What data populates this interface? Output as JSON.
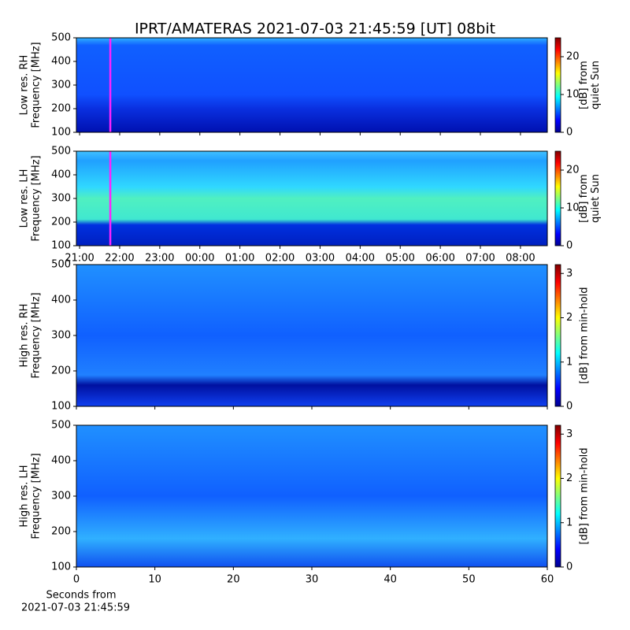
{
  "title": "IPRT/AMATERAS 2021-07-03 21:45:59 [UT]   08bit",
  "chart_data": [
    {
      "type": "spectrogram",
      "colormap": "jet",
      "ylabel": [
        "Low res. RH",
        "Frequency [MHz]"
      ],
      "xlim": [
        20.92,
        32.67
      ],
      "show_xtick_labels": false,
      "xticks": [
        {
          "value": 21,
          "label": "21:00"
        },
        {
          "value": 22,
          "label": "22:00"
        },
        {
          "value": 23,
          "label": "23:00"
        },
        {
          "value": 24,
          "label": "00:00"
        },
        {
          "value": 25,
          "label": "01:00"
        },
        {
          "value": 26,
          "label": "02:00"
        },
        {
          "value": 27,
          "label": "03:00"
        },
        {
          "value": 28,
          "label": "04:00"
        },
        {
          "value": 29,
          "label": "05:00"
        },
        {
          "value": 30,
          "label": "06:00"
        },
        {
          "value": 31,
          "label": "07:00"
        },
        {
          "value": 32,
          "label": "08:00"
        }
      ],
      "ylim": [
        100,
        500
      ],
      "yticks": [
        100,
        200,
        300,
        400,
        500
      ],
      "marker_x": 21.766,
      "marker_color": "#ff22ff",
      "colorbar": {
        "label": [
          "[dB] from",
          "quiet Sun"
        ],
        "lim": [
          0,
          25
        ],
        "ticks": [
          0,
          10,
          20
        ]
      }
    },
    {
      "type": "spectrogram",
      "colormap": "jet",
      "ylabel": [
        "Low res. LH",
        "Frequency [MHz]"
      ],
      "xlim": [
        20.92,
        32.67
      ],
      "show_xtick_labels": true,
      "xticks": [
        {
          "value": 21,
          "label": "21:00"
        },
        {
          "value": 22,
          "label": "22:00"
        },
        {
          "value": 23,
          "label": "23:00"
        },
        {
          "value": 24,
          "label": "00:00"
        },
        {
          "value": 25,
          "label": "01:00"
        },
        {
          "value": 26,
          "label": "02:00"
        },
        {
          "value": 27,
          "label": "03:00"
        },
        {
          "value": 28,
          "label": "04:00"
        },
        {
          "value": 29,
          "label": "05:00"
        },
        {
          "value": 30,
          "label": "06:00"
        },
        {
          "value": 31,
          "label": "07:00"
        },
        {
          "value": 32,
          "label": "08:00"
        }
      ],
      "ylim": [
        100,
        500
      ],
      "yticks": [
        100,
        200,
        300,
        400,
        500
      ],
      "marker_x": 21.766,
      "marker_color": "#ff22ff",
      "colorbar": {
        "label": [
          "[dB] from",
          "quiet Sun"
        ],
        "lim": [
          0,
          25
        ],
        "ticks": [
          0,
          10,
          20
        ]
      }
    },
    {
      "type": "spectrogram",
      "colormap": "jet",
      "ylabel": [
        "High res. RH",
        "Frequency [MHz]"
      ],
      "xlim": [
        0,
        60
      ],
      "show_xtick_labels": false,
      "xticks": [
        0,
        10,
        20,
        30,
        40,
        50,
        60
      ],
      "ylim": [
        100,
        500
      ],
      "yticks": [
        100,
        200,
        300,
        400,
        500
      ],
      "colorbar": {
        "label": [
          "[dB] from min-hold"
        ],
        "lim": [
          0,
          3.2
        ],
        "ticks": [
          0,
          1,
          2,
          3
        ]
      }
    },
    {
      "type": "spectrogram",
      "colormap": "jet",
      "ylabel": [
        "High res. LH",
        "Frequency [MHz]"
      ],
      "xlim": [
        0,
        60
      ],
      "show_xtick_labels": true,
      "xticks": [
        0,
        10,
        20,
        30,
        40,
        50,
        60
      ],
      "ylim": [
        100,
        500
      ],
      "yticks": [
        100,
        200,
        300,
        400,
        500
      ],
      "xlabel": [
        "Seconds from",
        "2021-07-03 21:45:59"
      ],
      "colorbar": {
        "label": [
          "[dB] from min-hold"
        ],
        "lim": [
          0,
          3.2
        ],
        "ticks": [
          0,
          1,
          2,
          3
        ]
      }
    }
  ]
}
